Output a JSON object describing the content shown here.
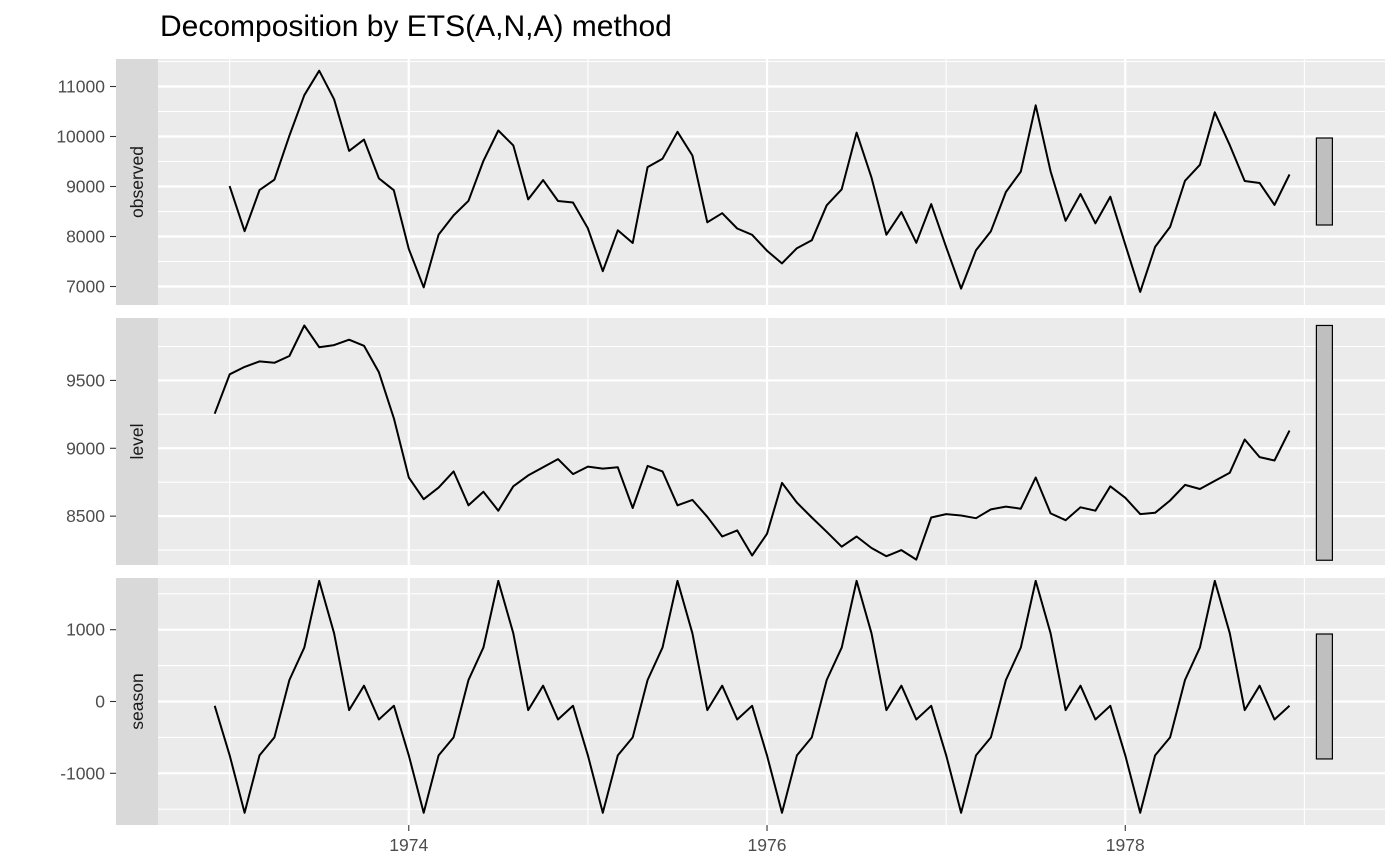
{
  "chart_data": {
    "type": "line",
    "title": "Decomposition by ETS(A,N,A) method",
    "xlabel": "",
    "ylabel": "",
    "grid": true,
    "x_range": [
      1972.6,
      1979.45
    ],
    "x_ticks": [
      1974,
      1976,
      1978
    ],
    "x_tick_labels": [
      "1974",
      "1976",
      "1978"
    ],
    "panels": [
      {
        "name": "observed",
        "x_start": 1973.0,
        "x_step": 0.08333333,
        "values": [
          9007,
          8106,
          8928,
          9137,
          10017,
          10826,
          11317,
          10744,
          9713,
          9938,
          9161,
          8927,
          7750,
          6981,
          8038,
          8422,
          8714,
          9512,
          10120,
          9823,
          8743,
          9129,
          8710,
          8680,
          8162,
          7306,
          8124,
          7870,
          9387,
          9556,
          10093,
          9620,
          8285,
          8466,
          8160,
          8034,
          7717,
          7461,
          7767,
          7925,
          8623,
          8945,
          10078,
          9179,
          8037,
          8488,
          7874,
          8647,
          7792,
          6957,
          7726,
          8106,
          8890,
          9299,
          10625,
          9302,
          8314,
          8850,
          8265,
          8796,
          7836,
          6892,
          7791,
          8192,
          9115,
          9434,
          10484,
          9827,
          9110,
          9070,
          8633,
          9240
        ],
        "ylim": [
          6630,
          11550
        ],
        "y_ticks": [
          7000,
          8000,
          9000,
          10000,
          11000
        ],
        "y_tick_labels": [
          "7000",
          "8000",
          "9000",
          "10000",
          "11000"
        ],
        "scale_bar": [
          8230,
          9970
        ]
      },
      {
        "name": "level",
        "x_start": 1972.9167,
        "x_step": 0.08333333,
        "values": [
          9255,
          9545,
          9600,
          9640,
          9630,
          9680,
          9905,
          9745,
          9760,
          9800,
          9755,
          9560,
          9220,
          8785,
          8625,
          8710,
          8830,
          8580,
          8680,
          8540,
          8720,
          8800,
          8860,
          8920,
          8810,
          8865,
          8850,
          8860,
          8560,
          8870,
          8830,
          8580,
          8620,
          8495,
          8350,
          8395,
          8210,
          8370,
          8745,
          8600,
          8490,
          8385,
          8275,
          8350,
          8265,
          8205,
          8250,
          8180,
          8490,
          8515,
          8505,
          8485,
          8550,
          8570,
          8555,
          8785,
          8520,
          8470,
          8565,
          8540,
          8720,
          8635,
          8515,
          8525,
          8615,
          8730,
          8700,
          8760,
          8820,
          9065,
          8935,
          8910,
          9130
        ],
        "ylim": [
          8140,
          9960
        ],
        "y_ticks": [
          8500,
          9000,
          9500
        ],
        "y_tick_labels": [
          "8500",
          "9000",
          "9500"
        ],
        "scale_bar": [
          8175,
          9905
        ]
      },
      {
        "name": "season",
        "x_start": 1972.9167,
        "x_step": 0.08333333,
        "cycle": [
          -60,
          -750,
          -1550,
          -750,
          -500,
          300,
          750,
          1680,
          950,
          -120,
          220,
          -250,
          -60
        ],
        "cycles": 6,
        "ylim": [
          -1720,
          1720
        ],
        "y_ticks": [
          -1000,
          0,
          1000
        ],
        "y_tick_labels": [
          "-1000",
          "0",
          "1000"
        ],
        "scale_bar": [
          -800,
          940
        ]
      }
    ]
  }
}
